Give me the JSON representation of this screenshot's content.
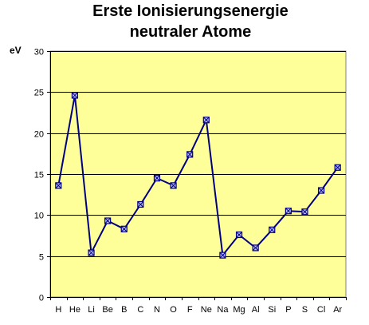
{
  "chart_data": {
    "type": "line",
    "title_line1": "Erste Ionisierungsenergie",
    "title_line2": "neutraler Atome",
    "ylabel": "eV",
    "xlabel": "",
    "categories": [
      "H",
      "He",
      "Li",
      "Be",
      "B",
      "C",
      "N",
      "O",
      "F",
      "Ne",
      "Na",
      "Mg",
      "Al",
      "Si",
      "P",
      "S",
      "Cl",
      "Ar"
    ],
    "series": [
      {
        "values": [
          13.6,
          24.6,
          5.4,
          9.3,
          8.3,
          11.3,
          14.5,
          13.6,
          17.4,
          21.6,
          5.1,
          7.6,
          6.0,
          8.2,
          10.5,
          10.4,
          13.0,
          15.8
        ]
      }
    ],
    "ylim": [
      0,
      30
    ],
    "yticks": [
      0,
      5,
      10,
      15,
      20,
      25,
      30
    ],
    "grid": "horizontal",
    "legend": "none",
    "colors": {
      "plot_background": "#FFFF99",
      "line": "#000080",
      "marker_fill": "#C0C0FF",
      "gridline": "#000000"
    }
  }
}
